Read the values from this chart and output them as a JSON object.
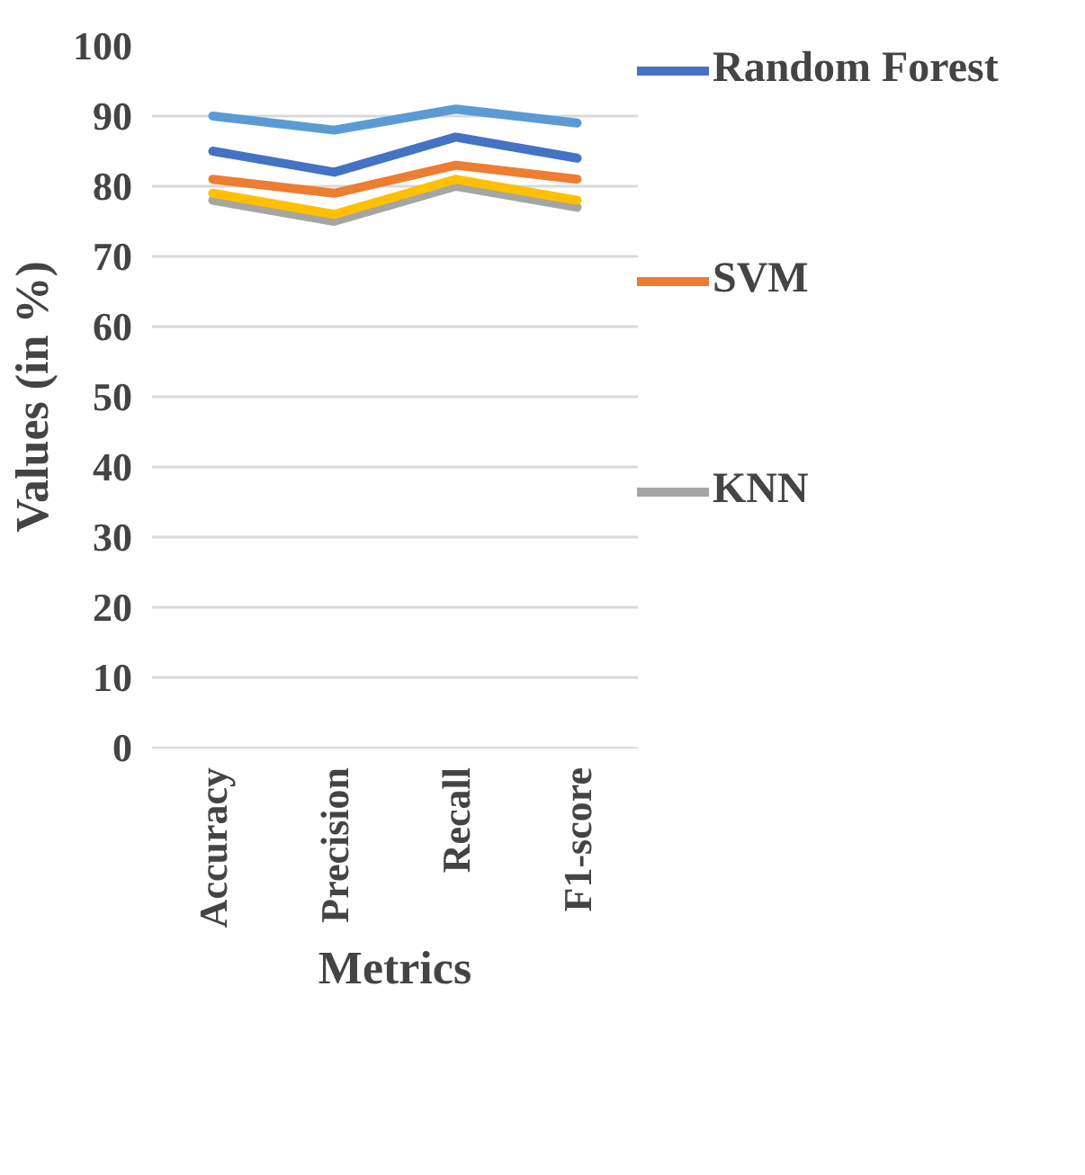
{
  "chart_data": {
    "type": "line",
    "xlabel": "Metrics",
    "ylabel": "Values (in %)",
    "categories": [
      "Accuracy",
      "Precision",
      "Recall",
      "F1-score"
    ],
    "ylim": [
      0,
      100
    ],
    "yticks": [
      0,
      10,
      20,
      30,
      40,
      50,
      60,
      70,
      80,
      90,
      100
    ],
    "grid": "y",
    "legend": "right",
    "marker": "none",
    "line_style": "solid",
    "series": [
      {
        "name": "Random Forest",
        "color": "#4472c4",
        "values": [
          85,
          82,
          87,
          84
        ]
      },
      {
        "name": "SVM",
        "color": "#ed7d31",
        "values": [
          81,
          79,
          83,
          81
        ]
      },
      {
        "name": "KNN",
        "color": "#a5a5a5",
        "values": [
          78,
          75,
          80,
          77
        ]
      },
      {
        "color": "#ffc000",
        "values": [
          79,
          76,
          81,
          78
        ]
      },
      {
        "color": "#5b9bd5",
        "values": [
          90,
          88,
          91,
          89
        ]
      }
    ]
  }
}
